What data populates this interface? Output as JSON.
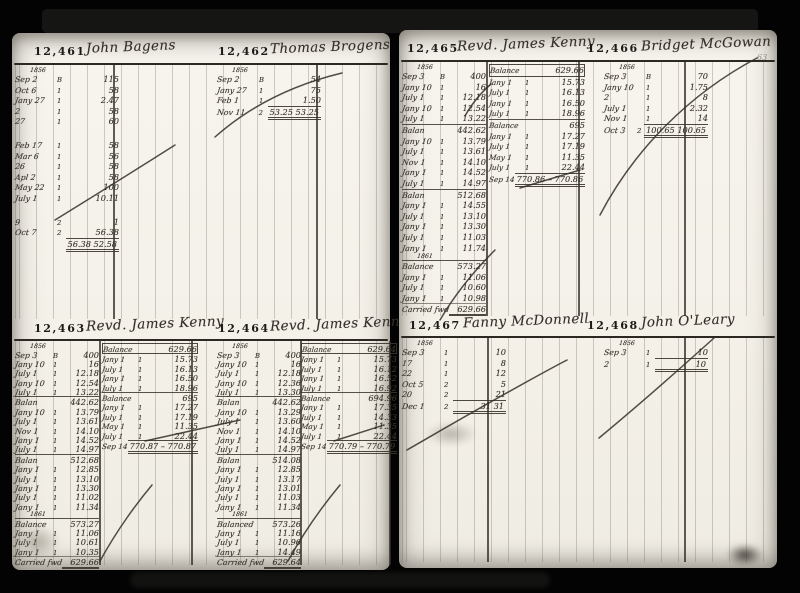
{
  "document": {
    "kind": "Handwritten double-entry account ledger, scanned two-page spread",
    "folio_mark": "63"
  },
  "accounts": [
    {
      "number": "12,461",
      "name": "John Bagens",
      "rows": [
        {
          "c": "yr",
          "d": "1856"
        },
        {
          "d": "Sep 2",
          "m": "B",
          "a": "115"
        },
        {
          "d": "Oct 6",
          "m": "1",
          "a": "58"
        },
        {
          "d": "Jany 27",
          "m": "1",
          "a": "2.47"
        },
        {
          "d": "2",
          "m": "1",
          "a": "58"
        },
        {
          "d": "27",
          "m": "1",
          "a": "60"
        },
        {
          "c": "gap"
        },
        {
          "d": "Feb 17",
          "m": "1",
          "a": "58"
        },
        {
          "d": "Mar 6",
          "m": "1",
          "a": "56"
        },
        {
          "d": "26",
          "m": "1",
          "a": "58"
        },
        {
          "d": "Apl 2",
          "m": "1",
          "a": "58"
        },
        {
          "d": "May 22",
          "m": "1",
          "a": "100"
        },
        {
          "d": "July 1",
          "m": "1",
          "a": "10.11"
        },
        {
          "c": "gap"
        },
        {
          "d": "9",
          "m": "2",
          "a": "1"
        },
        {
          "d": "Oct 7",
          "m": "2",
          "a": "56.38"
        },
        {
          "c": "tot",
          "d": "",
          "a": "56.38  52.58"
        }
      ]
    },
    {
      "number": "12,462",
      "name": "Thomas Brogens",
      "rows": [
        {
          "c": "yr",
          "d": "1856"
        },
        {
          "d": "Sep 2",
          "m": "B",
          "a": "54"
        },
        {
          "d": "Jany 27",
          "m": "1",
          "a": "75"
        },
        {
          "d": "Feb 1",
          "m": "1",
          "a": "1.50"
        },
        {
          "c": "tot",
          "d": "Nov 11",
          "m": "2",
          "a": "53.25  53.25"
        }
      ]
    },
    {
      "number": "12,463",
      "name": "Revd. James Kenny",
      "rows": [
        {
          "c": "yr",
          "d": "1856"
        },
        {
          "d": "Sep 3",
          "m": "B",
          "a": "400"
        },
        {
          "d": "Jany 10",
          "m": "1",
          "a": "16"
        },
        {
          "d": "July 1",
          "m": "1",
          "a": "12.18"
        },
        {
          "d": "Jany 10",
          "m": "1",
          "a": "12.54"
        },
        {
          "d": "July 1",
          "m": "1",
          "a": "13.22"
        },
        {
          "c": "bal",
          "d": "Balan",
          "a": "442.62"
        },
        {
          "d": "Jany 10",
          "m": "1",
          "a": "13.79"
        },
        {
          "d": "July 1",
          "m": "1",
          "a": "13.61"
        },
        {
          "d": "Nov 1",
          "m": "1",
          "a": "14.10"
        },
        {
          "d": "Jany 1",
          "m": "1",
          "a": "14.52"
        },
        {
          "d": "July 1",
          "m": "1",
          "a": "14.97"
        },
        {
          "c": "bal",
          "d": "Balan",
          "a": "512.68"
        },
        {
          "d": "Jany 1",
          "m": "1",
          "a": "12.85"
        },
        {
          "d": "July 1",
          "m": "1",
          "a": "13.10"
        },
        {
          "d": "Jany 1",
          "m": "1",
          "a": "13.30"
        },
        {
          "d": "July 1",
          "m": "1",
          "a": "11.02"
        },
        {
          "d": "Jany 1",
          "m": "1",
          "a": "11.34"
        },
        {
          "c": "yr",
          "d": "1861"
        },
        {
          "c": "bal",
          "d": "Balance",
          "a": "573.27"
        },
        {
          "d": "Jany 1",
          "m": "1",
          "a": "11.06"
        },
        {
          "d": "July 1",
          "m": "1",
          "a": "10.61"
        },
        {
          "d": "Jany 1",
          "m": "1",
          "a": "10.35"
        },
        {
          "c": "fwd",
          "d": "Carried fwd",
          "a": "629.66"
        }
      ],
      "rows2": [
        {
          "c": "balbox",
          "d": "Balance",
          "a": "629.66"
        },
        {
          "d": "Jany 1",
          "m": "1",
          "a": "15.73"
        },
        {
          "d": "July 1",
          "m": "1",
          "a": "16.13"
        },
        {
          "d": "Jany 1",
          "m": "1",
          "a": "16.50"
        },
        {
          "d": "July 1",
          "m": "1",
          "a": "18.96"
        },
        {
          "c": "bal",
          "d": "Balance",
          "a": "695"
        },
        {
          "d": "Jany 1",
          "m": "1",
          "a": "17.27"
        },
        {
          "d": "July 1",
          "m": "1",
          "a": "17.19"
        },
        {
          "d": "May 1",
          "m": "1",
          "a": "11.35"
        },
        {
          "d": "July 1",
          "m": "1",
          "a": "22.44"
        },
        {
          "c": "tot",
          "d": "Sep 14",
          "a": "770.87 – 770.87"
        }
      ]
    },
    {
      "number": "12,464",
      "name": "Revd. James Kenny",
      "rows": [
        {
          "c": "yr",
          "d": "1856"
        },
        {
          "d": "Sep 3",
          "m": "B",
          "a": "400"
        },
        {
          "d": "Jany 10",
          "m": "1",
          "a": "16"
        },
        {
          "d": "July 1",
          "m": "1",
          "a": "12.18"
        },
        {
          "d": "Jany 10",
          "m": "1",
          "a": "12.36"
        },
        {
          "d": "July 1",
          "m": "1",
          "a": "13.30"
        },
        {
          "c": "bal",
          "d": "Balan",
          "a": "442.62"
        },
        {
          "d": "Jany 10",
          "m": "1",
          "a": "13.29"
        },
        {
          "d": "July 1",
          "m": "1",
          "a": "13.60"
        },
        {
          "d": "Nov 1",
          "m": "1",
          "a": "14.10"
        },
        {
          "d": "Jany 1",
          "m": "1",
          "a": "14.52"
        },
        {
          "d": "July 1",
          "m": "1",
          "a": "14.97"
        },
        {
          "c": "bal",
          "d": "Balan",
          "a": "514.08"
        },
        {
          "d": "Jany 1",
          "m": "1",
          "a": "12.85"
        },
        {
          "d": "July 1",
          "m": "1",
          "a": "13.17"
        },
        {
          "d": "Jany 1",
          "m": "1",
          "a": "13.01"
        },
        {
          "d": "July 1",
          "m": "1",
          "a": "11.03"
        },
        {
          "d": "Jany 1",
          "m": "1",
          "a": "11.34"
        },
        {
          "c": "yr",
          "d": "1861"
        },
        {
          "c": "bal",
          "d": "Balanced",
          "a": "573.26"
        },
        {
          "d": "Jany 1",
          "m": "1",
          "a": "11.16"
        },
        {
          "d": "July 1",
          "m": "1",
          "a": "10.96"
        },
        {
          "d": "Jany 1",
          "m": "1",
          "a": "14.49"
        },
        {
          "c": "fwd",
          "d": "Carried fwd",
          "a": "629.64"
        }
      ],
      "rows2": [
        {
          "c": "balbox",
          "d": "Balance",
          "a": "629.64"
        },
        {
          "d": "Jany 1",
          "m": "1",
          "a": "15.73"
        },
        {
          "d": "July 1",
          "m": "1",
          "a": "16.12"
        },
        {
          "d": "Jany 1",
          "m": "1",
          "a": "16.52"
        },
        {
          "d": "July 1",
          "m": "1",
          "a": "16.92"
        },
        {
          "c": "bal",
          "d": "Balance",
          "a": "694.96"
        },
        {
          "d": "Jany 1",
          "m": "1",
          "a": "17.35"
        },
        {
          "d": "July 1",
          "m": "1",
          "a": "14.33"
        },
        {
          "d": "May 1",
          "m": "1",
          "a": "11.35"
        },
        {
          "d": "July 1",
          "m": "1",
          "a": "22.44"
        },
        {
          "c": "tot",
          "d": "Sep 14",
          "a": "770.79 – 770.79"
        }
      ]
    },
    {
      "number": "12,465",
      "name": "Revd. James Kenny",
      "rows": [
        {
          "c": "yr",
          "d": "1856"
        },
        {
          "d": "Sep 3",
          "m": "B",
          "a": "400"
        },
        {
          "d": "Jany 10",
          "m": "1",
          "a": "16"
        },
        {
          "d": "July 1",
          "m": "1",
          "a": "12.18"
        },
        {
          "d": "Jany 10",
          "m": "1",
          "a": "12.54"
        },
        {
          "d": "July 1",
          "m": "1",
          "a": "13.22"
        },
        {
          "c": "bal",
          "d": "Balan",
          "a": "442.62"
        },
        {
          "d": "Jany 10",
          "m": "1",
          "a": "13.79"
        },
        {
          "d": "July 1",
          "m": "1",
          "a": "13.61"
        },
        {
          "d": "Nov 1",
          "m": "1",
          "a": "14.10"
        },
        {
          "d": "Jany 1",
          "m": "1",
          "a": "14.52"
        },
        {
          "d": "July 1",
          "m": "1",
          "a": "14.97"
        },
        {
          "c": "bal",
          "d": "Balan",
          "a": "512.68"
        },
        {
          "d": "Jany 1",
          "m": "1",
          "a": "14.55"
        },
        {
          "d": "July 1",
          "m": "1",
          "a": "13.10"
        },
        {
          "d": "Jany 1",
          "m": "1",
          "a": "13.30"
        },
        {
          "d": "July 1",
          "m": "1",
          "a": "11.03"
        },
        {
          "d": "Jany 1",
          "m": "1",
          "a": "11.74"
        },
        {
          "c": "yr",
          "d": "1861"
        },
        {
          "c": "bal",
          "d": "Balance",
          "a": "573.27"
        },
        {
          "d": "Jany 1",
          "m": "1",
          "a": "11.06"
        },
        {
          "d": "July 1",
          "m": "1",
          "a": "10.60"
        },
        {
          "d": "Jany 1",
          "m": "1",
          "a": "10.98"
        },
        {
          "c": "fwd",
          "d": "Carried fwd",
          "a": "629.66"
        }
      ],
      "rows2": [
        {
          "c": "balbox",
          "d": "Balance",
          "a": "629.66"
        },
        {
          "d": "Jany 1",
          "m": "1",
          "a": "15.73"
        },
        {
          "d": "July 1",
          "m": "1",
          "a": "16.13"
        },
        {
          "d": "Jany 1",
          "m": "1",
          "a": "16.50"
        },
        {
          "d": "July 1",
          "m": "1",
          "a": "18.96"
        },
        {
          "c": "bal",
          "d": "Balance",
          "a": "695"
        },
        {
          "d": "Jany 1",
          "m": "1",
          "a": "17.27"
        },
        {
          "d": "July 1",
          "m": "1",
          "a": "17.19"
        },
        {
          "d": "May 1",
          "m": "1",
          "a": "11.35"
        },
        {
          "d": "July 1",
          "m": "1",
          "a": "22.44"
        },
        {
          "c": "tot",
          "d": "Sep 14",
          "a": "770.86 – 770.86"
        }
      ]
    },
    {
      "number": "12,466",
      "name": "Bridget McGowan",
      "rows": [
        {
          "c": "yr",
          "d": "1856"
        },
        {
          "d": "Sep 3",
          "m": "B",
          "a": "70"
        },
        {
          "d": "Jany 10",
          "m": "1",
          "a": "1.75"
        },
        {
          "d": "2",
          "m": "1",
          "a": "8"
        },
        {
          "d": "July 1",
          "m": "1",
          "a": "2.32"
        },
        {
          "d": "Nov 1",
          "m": "1",
          "a": "14"
        },
        {
          "c": "tot",
          "d": "Oct 3",
          "m": "2",
          "a": "100.65  100.65"
        }
      ]
    },
    {
      "number": "12,467",
      "name": "Fanny McDonnell",
      "rows": [
        {
          "c": "yr",
          "d": "1856"
        },
        {
          "d": "Sep 3",
          "m": "1",
          "a": "10"
        },
        {
          "d": "17",
          "m": "1",
          "a": "8"
        },
        {
          "d": "22",
          "m": "1",
          "a": "12"
        },
        {
          "d": "Oct 5",
          "m": "2",
          "a": "5"
        },
        {
          "d": "20",
          "m": "2",
          "a": "21"
        },
        {
          "c": "tot",
          "d": "Dec 1",
          "m": "2",
          "a": "31  31"
        }
      ]
    },
    {
      "number": "12,468",
      "name": "John O'Leary",
      "rows": [
        {
          "c": "yr",
          "d": "1856"
        },
        {
          "d": "Sep 3",
          "m": "1",
          "a": "10"
        },
        {
          "c": "tot",
          "d": "2",
          "m": "1",
          "a": "10"
        }
      ]
    }
  ]
}
